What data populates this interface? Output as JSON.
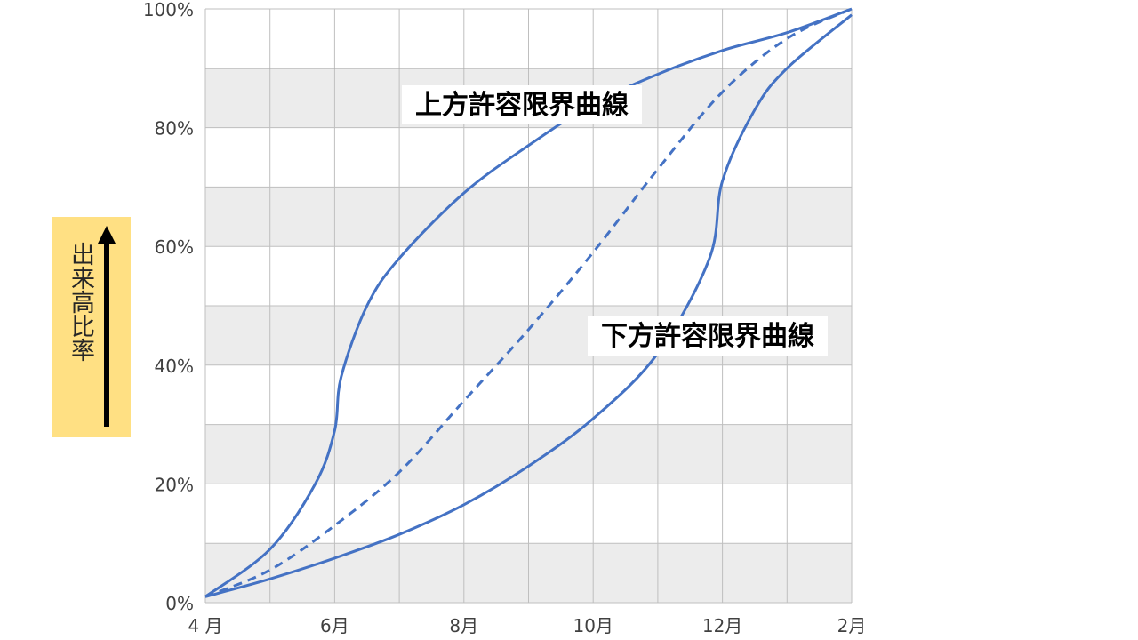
{
  "chart_data": {
    "type": "line",
    "title": "",
    "xlabel": "",
    "ylabel": "出来高比率",
    "x_ticks": [
      "4 月",
      "6月",
      "8月",
      "10月",
      "12月",
      "2月"
    ],
    "y_ticks": [
      "0%",
      "20%",
      "40%",
      "60%",
      "80%",
      "100%"
    ],
    "ylim": [
      0,
      100
    ],
    "x_unit": "month index (0 = April, 10 = February)",
    "xlim": [
      0,
      10
    ],
    "grid": true,
    "band_fill": "#ececec",
    "line_color": "#4472c4",
    "series": [
      {
        "name": "上方許容限界曲線",
        "style": "solid",
        "points": [
          [
            0,
            1
          ],
          [
            1,
            9
          ],
          [
            1.7,
            20
          ],
          [
            2,
            29
          ],
          [
            2.1,
            38
          ],
          [
            2.5,
            50
          ],
          [
            3,
            58
          ],
          [
            4,
            69
          ],
          [
            5,
            77
          ],
          [
            6,
            84
          ],
          [
            7,
            89
          ],
          [
            8,
            93
          ],
          [
            9,
            96
          ],
          [
            10,
            100
          ]
        ]
      },
      {
        "name": "",
        "style": "dashed",
        "points": [
          [
            0,
            1
          ],
          [
            1,
            5.5
          ],
          [
            2,
            13
          ],
          [
            3,
            22
          ],
          [
            4,
            34
          ],
          [
            5,
            46
          ],
          [
            6,
            59
          ],
          [
            7,
            73
          ],
          [
            8,
            86
          ],
          [
            9,
            95
          ],
          [
            10,
            100
          ]
        ]
      },
      {
        "name": "下方許容限界曲線",
        "style": "solid",
        "points": [
          [
            0,
            1
          ],
          [
            1,
            4
          ],
          [
            2,
            7.5
          ],
          [
            3,
            11.5
          ],
          [
            4,
            16.5
          ],
          [
            5,
            23
          ],
          [
            6,
            31
          ],
          [
            7,
            42
          ],
          [
            7.8,
            58
          ],
          [
            8,
            71
          ],
          [
            8.5,
            83
          ],
          [
            9,
            90
          ],
          [
            10,
            99
          ]
        ]
      }
    ],
    "annotations": [
      {
        "text": "上方許容限界曲線",
        "series": 0
      },
      {
        "text": "下方許容限界曲線",
        "series": 2
      }
    ]
  }
}
